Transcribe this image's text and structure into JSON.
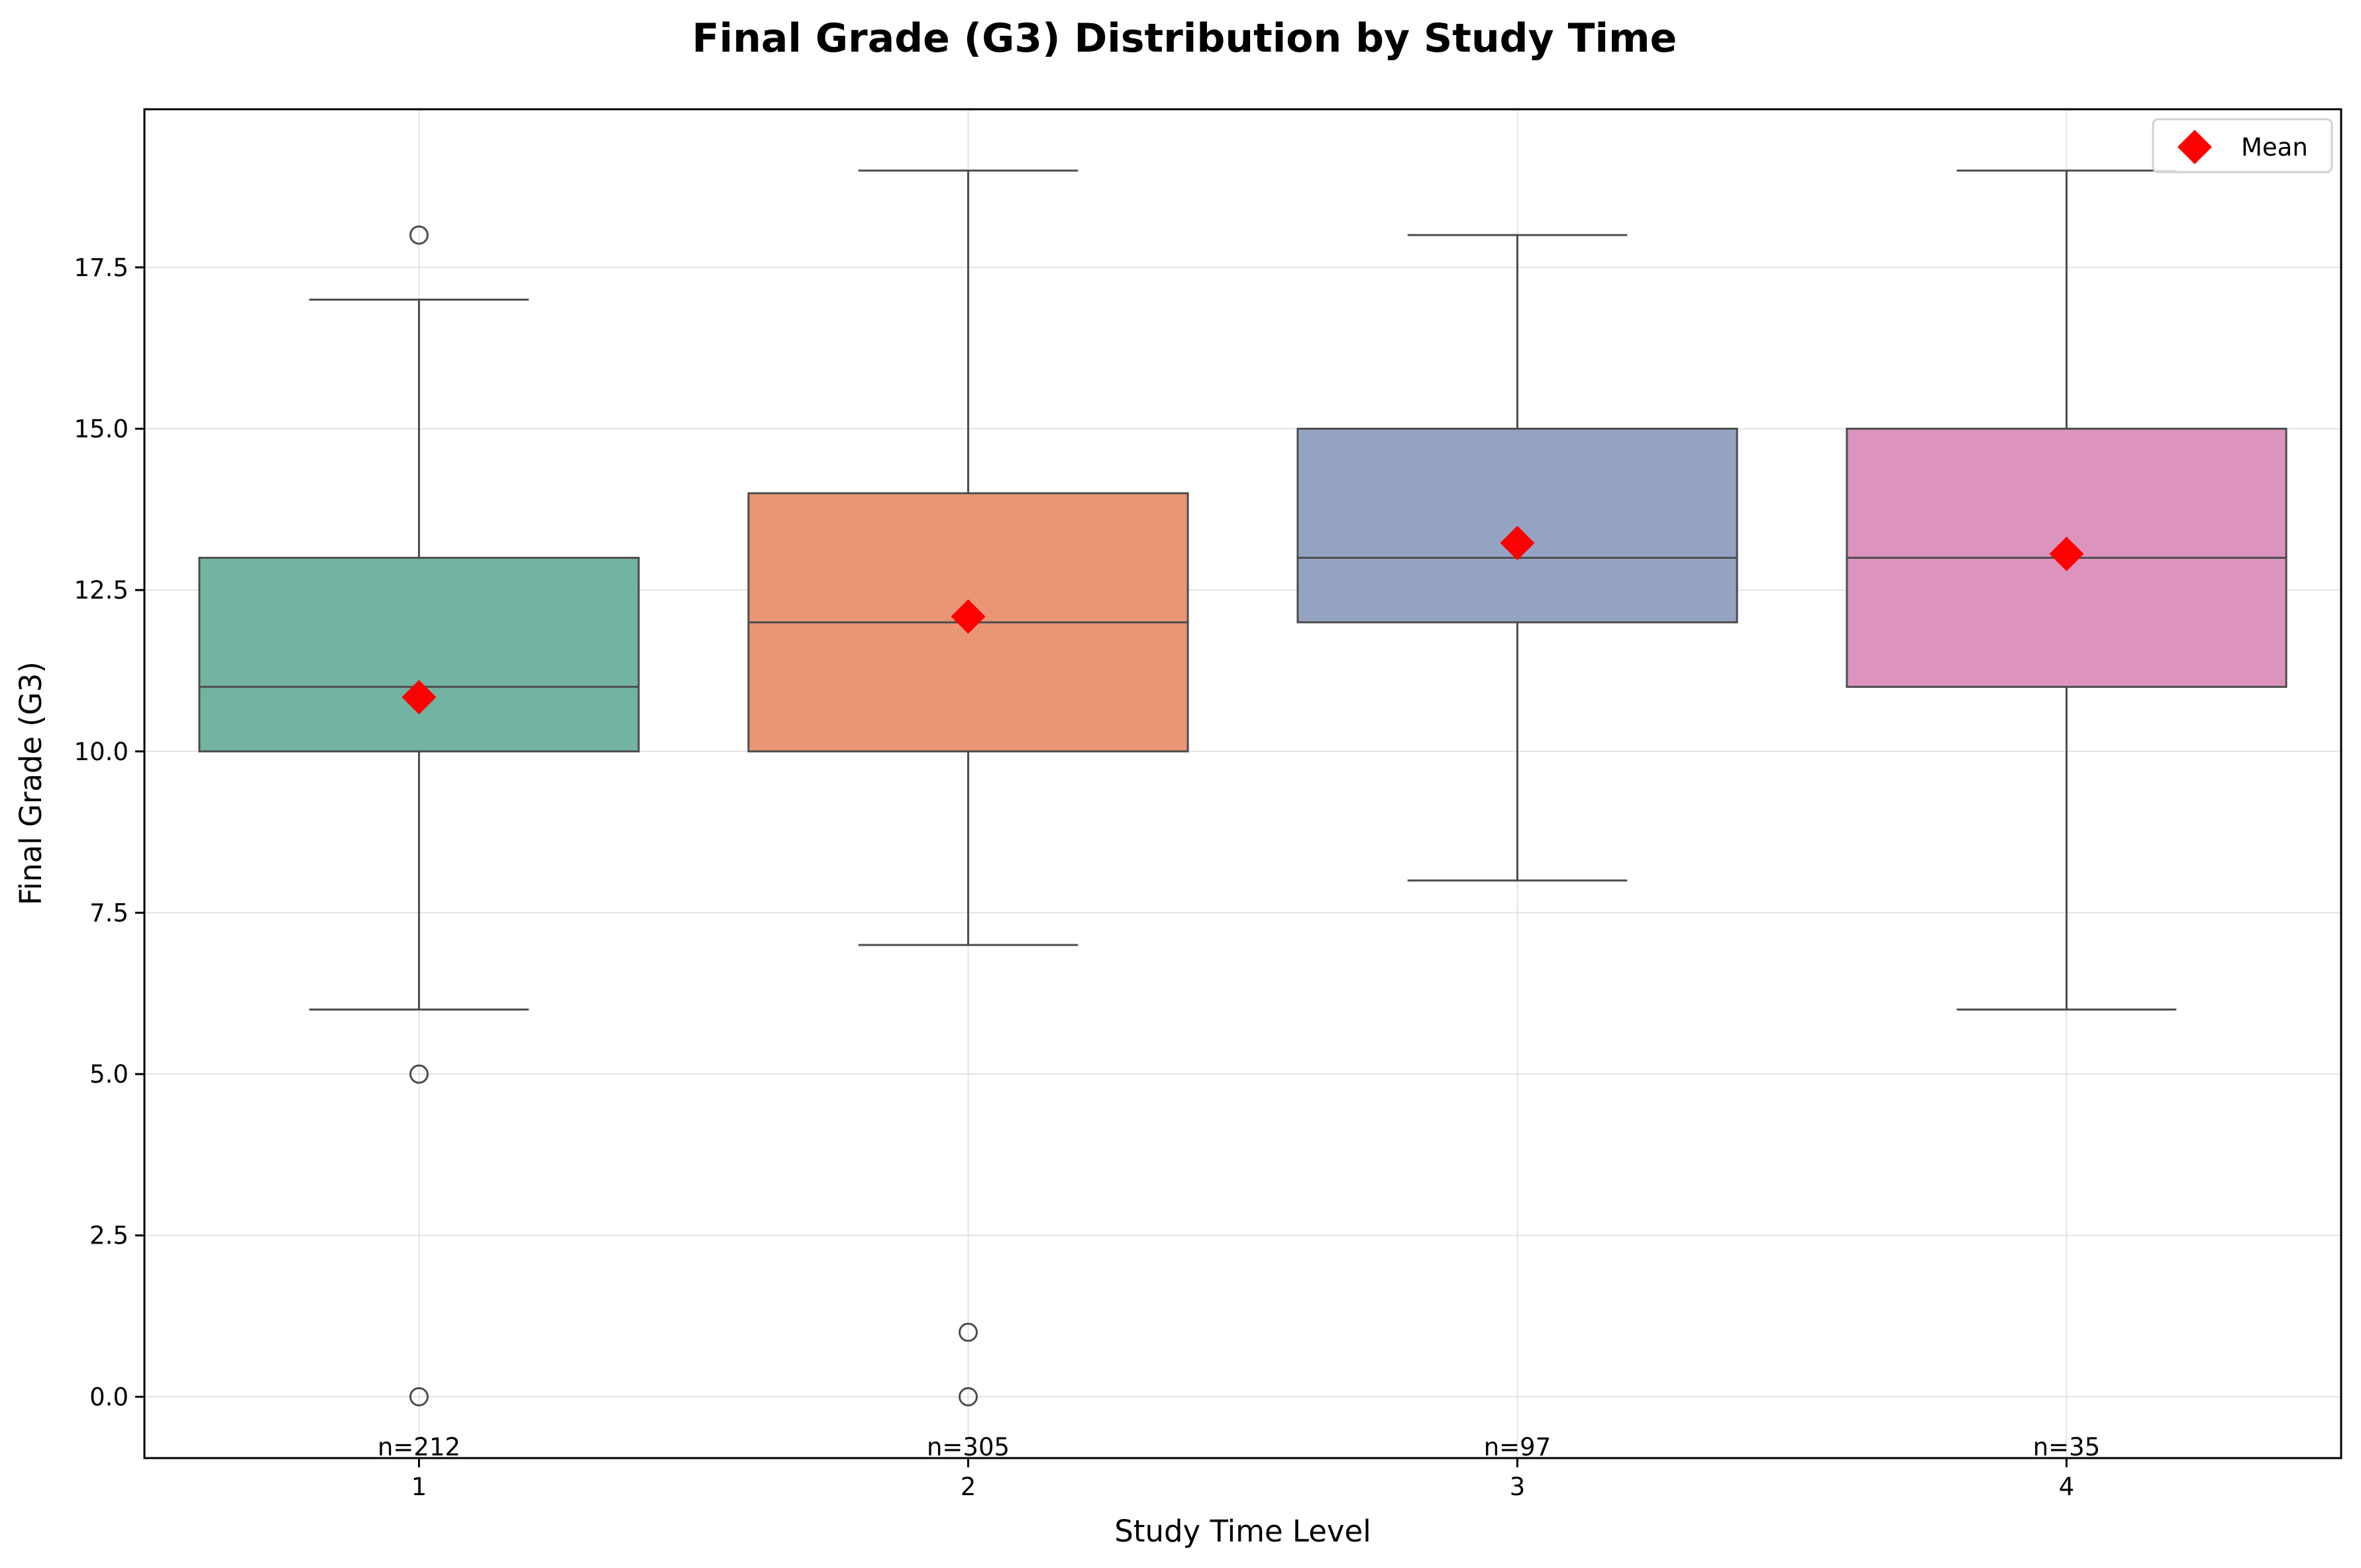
{
  "chart_data": {
    "type": "box",
    "title": "Final Grade (G3) Distribution by Study Time",
    "xlabel": "Study Time Level",
    "ylabel": "Final Grade (G3)",
    "ylim": [
      -0.95,
      19.95
    ],
    "yticks": [
      0.0,
      2.5,
      5.0,
      7.5,
      10.0,
      12.5,
      15.0,
      17.5
    ],
    "ytick_labels": [
      "0.0",
      "2.5",
      "5.0",
      "7.5",
      "10.0",
      "12.5",
      "15.0",
      "17.5"
    ],
    "grid": true,
    "legend": {
      "position": "top-right",
      "entries": [
        {
          "label": "Mean",
          "marker": "diamond",
          "color": "#ff0000"
        }
      ]
    },
    "categories": [
      "1",
      "2",
      "3",
      "4"
    ],
    "boxes": [
      {
        "category": "1",
        "whisker_low": 6,
        "q1": 10,
        "median": 11,
        "q3": 13,
        "whisker_high": 17,
        "mean": 10.84,
        "outliers": [
          18,
          5,
          0
        ],
        "n_label": "n=212",
        "color": "#73b3a1"
      },
      {
        "category": "2",
        "whisker_low": 7,
        "q1": 10,
        "median": 12,
        "q3": 14,
        "whisker_high": 19,
        "mean": 12.09,
        "outliers": [
          1,
          0
        ],
        "n_label": "n=305",
        "color": "#e99675"
      },
      {
        "category": "3",
        "whisker_low": 8,
        "q1": 12,
        "median": 13,
        "q3": 15,
        "whisker_high": 18,
        "mean": 13.23,
        "outliers": [],
        "n_label": "n=97",
        "color": "#95a3c3"
      },
      {
        "category": "4",
        "whisker_low": 6,
        "q1": 11,
        "median": 13,
        "q3": 15,
        "whisker_high": 19,
        "mean": 13.06,
        "outliers": [],
        "n_label": "n=35",
        "color": "#dc94bf"
      }
    ]
  }
}
